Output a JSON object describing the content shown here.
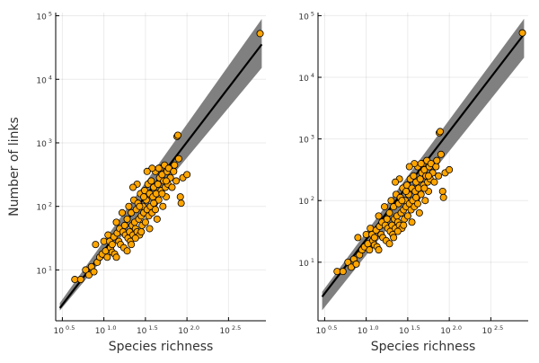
{
  "chart_data": [
    {
      "type": "scatter",
      "title": "",
      "xlabel": "Species richness",
      "ylabel": "Number of links",
      "xscale": "log10",
      "yscale": "log10",
      "xlim_log10": [
        0.42,
        2.95
      ],
      "ylim_log10": [
        0.2,
        5.05
      ],
      "x_ticks_log10": [
        0.5,
        1.0,
        1.5,
        2.0,
        2.5
      ],
      "x_tick_labels": [
        "10 0.5",
        "10 1.0",
        "10 1.5",
        "10 2.0",
        "10 2.5"
      ],
      "y_ticks_log10": [
        1,
        2,
        3,
        4,
        5
      ],
      "y_tick_labels": [
        "10 1",
        "10 2",
        "10 3",
        "10 4",
        "10 5"
      ],
      "grid": true,
      "legend": "none",
      "colors": {
        "points": "#FFA500",
        "point_edge": "#000000",
        "fit_line": "#000000",
        "band": "#808080"
      },
      "fit_line_log10": {
        "x": [
          0.47,
          2.9
        ],
        "y": [
          0.4,
          4.55
        ]
      },
      "band_log10": {
        "x": [
          0.47,
          2.9
        ],
        "upper": [
          0.48,
          4.95
        ],
        "lower": [
          0.36,
          4.18
        ]
      },
      "points_log10": [
        [
          0.65,
          0.85
        ],
        [
          0.72,
          0.85
        ],
        [
          0.78,
          1.0
        ],
        [
          0.82,
          0.92
        ],
        [
          0.85,
          1.05
        ],
        [
          0.88,
          0.97
        ],
        [
          0.9,
          1.4
        ],
        [
          0.92,
          1.12
        ],
        [
          0.95,
          1.2
        ],
        [
          0.98,
          1.25
        ],
        [
          1.0,
          1.45
        ],
        [
          1.02,
          1.3
        ],
        [
          1.04,
          1.2
        ],
        [
          1.05,
          1.55
        ],
        [
          1.07,
          1.45
        ],
        [
          1.08,
          1.35
        ],
        [
          1.1,
          1.28
        ],
        [
          1.12,
          1.52
        ],
        [
          1.13,
          1.25
        ],
        [
          1.15,
          1.75
        ],
        [
          1.16,
          1.58
        ],
        [
          1.18,
          1.45
        ],
        [
          1.19,
          1.65
        ],
        [
          1.2,
          1.4
        ],
        [
          1.22,
          1.9
        ],
        [
          1.23,
          1.6
        ],
        [
          1.24,
          1.35
        ],
        [
          1.25,
          1.7
        ],
        [
          1.26,
          1.55
        ],
        [
          1.28,
          1.8
        ],
        [
          1.29,
          1.5
        ],
        [
          1.3,
          2.0
        ],
        [
          1.31,
          1.6
        ],
        [
          1.32,
          1.45
        ],
        [
          1.33,
          1.9
        ],
        [
          1.34,
          1.7
        ],
        [
          1.35,
          1.55
        ],
        [
          1.36,
          2.1
        ],
        [
          1.37,
          1.75
        ],
        [
          1.38,
          1.65
        ],
        [
          1.39,
          1.95
        ],
        [
          1.4,
          1.6
        ],
        [
          1.41,
          2.05
        ],
        [
          1.42,
          1.8
        ],
        [
          1.43,
          1.55
        ],
        [
          1.44,
          2.2
        ],
        [
          1.45,
          1.85
        ],
        [
          1.46,
          1.7
        ],
        [
          1.47,
          2.0
        ],
        [
          1.48,
          1.9
        ],
        [
          1.49,
          2.25
        ],
        [
          1.5,
          1.75
        ],
        [
          1.51,
          2.1
        ],
        [
          1.52,
          1.95
        ],
        [
          1.53,
          2.35
        ],
        [
          1.54,
          1.85
        ],
        [
          1.55,
          2.2
        ],
        [
          1.56,
          2.0
        ],
        [
          1.57,
          2.4
        ],
        [
          1.58,
          1.9
        ],
        [
          1.59,
          2.15
        ],
        [
          1.6,
          2.3
        ],
        [
          1.61,
          2.05
        ],
        [
          1.62,
          2.55
        ],
        [
          1.63,
          2.2
        ],
        [
          1.64,
          1.8
        ],
        [
          1.65,
          2.35
        ],
        [
          1.66,
          2.1
        ],
        [
          1.67,
          2.45
        ],
        [
          1.68,
          2.6
        ],
        [
          1.69,
          2.25
        ],
        [
          1.7,
          2.5
        ],
        [
          1.71,
          2.0
        ],
        [
          1.72,
          2.4
        ],
        [
          1.73,
          2.65
        ],
        [
          1.74,
          2.3
        ],
        [
          1.75,
          2.15
        ],
        [
          1.76,
          2.55
        ],
        [
          1.77,
          2.35
        ],
        [
          1.78,
          2.6
        ],
        [
          1.8,
          2.45
        ],
        [
          1.82,
          2.3
        ],
        [
          1.84,
          2.55
        ],
        [
          1.85,
          2.65
        ],
        [
          1.87,
          2.4
        ],
        [
          1.88,
          3.1
        ],
        [
          1.89,
          3.12
        ],
        [
          1.9,
          2.75
        ],
        [
          1.92,
          2.15
        ],
        [
          1.93,
          2.05
        ],
        [
          1.95,
          2.45
        ],
        [
          2.0,
          2.5
        ],
        [
          1.28,
          1.3
        ],
        [
          1.33,
          1.4
        ],
        [
          1.38,
          1.5
        ],
        [
          1.45,
          1.6
        ],
        [
          1.15,
          1.2
        ],
        [
          1.1,
          1.4
        ],
        [
          1.48,
          2.15
        ],
        [
          1.55,
          1.65
        ],
        [
          1.62,
          1.95
        ],
        [
          1.7,
          2.2
        ],
        [
          1.66,
          2.6
        ],
        [
          1.58,
          2.6
        ],
        [
          1.52,
          2.55
        ],
        [
          1.4,
          2.35
        ],
        [
          1.35,
          2.3
        ],
        [
          1.43,
          2.0
        ],
        [
          1.6,
          2.05
        ],
        [
          1.75,
          2.4
        ],
        [
          2.88,
          4.72
        ]
      ]
    },
    {
      "type": "scatter",
      "title": "",
      "xlabel": "Species richness",
      "ylabel": "",
      "xscale": "log10",
      "yscale": "log10",
      "xlim_log10": [
        0.42,
        2.95
      ],
      "ylim_log10": [
        0.05,
        5.05
      ],
      "x_ticks_log10": [
        0.5,
        1.0,
        1.5,
        2.0,
        2.5
      ],
      "x_tick_labels": [
        "10 0.5",
        "10 1.0",
        "10 1.5",
        "10 2.0",
        "10 2.5"
      ],
      "y_ticks_log10": [
        1,
        2,
        3,
        4,
        5
      ],
      "y_tick_labels": [
        "10 1",
        "10 2",
        "10 3",
        "10 4",
        "10 5"
      ],
      "grid": true,
      "legend": "none",
      "colors": {
        "points": "#FFA500",
        "point_edge": "#000000",
        "fit_line": "#000000",
        "band": "#808080"
      },
      "fit_line_log10": {
        "x": [
          0.47,
          2.9
        ],
        "y": [
          0.44,
          4.7
        ]
      },
      "band_log10": {
        "x": [
          0.47,
          2.9
        ],
        "upper": [
          0.52,
          4.95
        ],
        "lower": [
          0.22,
          4.32
        ]
      },
      "points_log10": [
        [
          0.65,
          0.85
        ],
        [
          0.72,
          0.85
        ],
        [
          0.78,
          1.0
        ],
        [
          0.82,
          0.92
        ],
        [
          0.85,
          1.05
        ],
        [
          0.88,
          0.97
        ],
        [
          0.9,
          1.4
        ],
        [
          0.92,
          1.12
        ],
        [
          0.95,
          1.2
        ],
        [
          0.98,
          1.25
        ],
        [
          1.0,
          1.45
        ],
        [
          1.02,
          1.3
        ],
        [
          1.04,
          1.2
        ],
        [
          1.05,
          1.55
        ],
        [
          1.07,
          1.45
        ],
        [
          1.08,
          1.35
        ],
        [
          1.1,
          1.28
        ],
        [
          1.12,
          1.52
        ],
        [
          1.13,
          1.25
        ],
        [
          1.15,
          1.75
        ],
        [
          1.16,
          1.58
        ],
        [
          1.18,
          1.45
        ],
        [
          1.19,
          1.65
        ],
        [
          1.2,
          1.4
        ],
        [
          1.22,
          1.9
        ],
        [
          1.23,
          1.6
        ],
        [
          1.24,
          1.35
        ],
        [
          1.25,
          1.7
        ],
        [
          1.26,
          1.55
        ],
        [
          1.28,
          1.8
        ],
        [
          1.29,
          1.5
        ],
        [
          1.3,
          2.0
        ],
        [
          1.31,
          1.6
        ],
        [
          1.32,
          1.45
        ],
        [
          1.33,
          1.9
        ],
        [
          1.34,
          1.7
        ],
        [
          1.35,
          1.55
        ],
        [
          1.36,
          2.1
        ],
        [
          1.37,
          1.75
        ],
        [
          1.38,
          1.65
        ],
        [
          1.39,
          1.95
        ],
        [
          1.4,
          1.6
        ],
        [
          1.41,
          2.05
        ],
        [
          1.42,
          1.8
        ],
        [
          1.43,
          1.55
        ],
        [
          1.44,
          2.2
        ],
        [
          1.45,
          1.85
        ],
        [
          1.46,
          1.7
        ],
        [
          1.47,
          2.0
        ],
        [
          1.48,
          1.9
        ],
        [
          1.49,
          2.25
        ],
        [
          1.5,
          1.75
        ],
        [
          1.51,
          2.1
        ],
        [
          1.52,
          1.95
        ],
        [
          1.53,
          2.35
        ],
        [
          1.54,
          1.85
        ],
        [
          1.55,
          2.2
        ],
        [
          1.56,
          2.0
        ],
        [
          1.57,
          2.4
        ],
        [
          1.58,
          1.9
        ],
        [
          1.59,
          2.15
        ],
        [
          1.6,
          2.3
        ],
        [
          1.61,
          2.05
        ],
        [
          1.62,
          2.55
        ],
        [
          1.63,
          2.2
        ],
        [
          1.64,
          1.8
        ],
        [
          1.65,
          2.35
        ],
        [
          1.66,
          2.1
        ],
        [
          1.67,
          2.45
        ],
        [
          1.68,
          2.6
        ],
        [
          1.69,
          2.25
        ],
        [
          1.7,
          2.5
        ],
        [
          1.71,
          2.0
        ],
        [
          1.72,
          2.4
        ],
        [
          1.73,
          2.65
        ],
        [
          1.74,
          2.3
        ],
        [
          1.75,
          2.15
        ],
        [
          1.76,
          2.55
        ],
        [
          1.77,
          2.35
        ],
        [
          1.78,
          2.6
        ],
        [
          1.8,
          2.45
        ],
        [
          1.82,
          2.3
        ],
        [
          1.84,
          2.55
        ],
        [
          1.85,
          2.65
        ],
        [
          1.87,
          2.4
        ],
        [
          1.88,
          3.1
        ],
        [
          1.89,
          3.12
        ],
        [
          1.9,
          2.75
        ],
        [
          1.92,
          2.15
        ],
        [
          1.93,
          2.05
        ],
        [
          1.95,
          2.45
        ],
        [
          2.0,
          2.5
        ],
        [
          1.28,
          1.3
        ],
        [
          1.33,
          1.4
        ],
        [
          1.38,
          1.5
        ],
        [
          1.45,
          1.6
        ],
        [
          1.15,
          1.2
        ],
        [
          1.1,
          1.4
        ],
        [
          1.48,
          2.15
        ],
        [
          1.55,
          1.65
        ],
        [
          1.62,
          1.95
        ],
        [
          1.7,
          2.2
        ],
        [
          1.66,
          2.6
        ],
        [
          1.58,
          2.6
        ],
        [
          1.52,
          2.55
        ],
        [
          1.4,
          2.35
        ],
        [
          1.35,
          2.3
        ],
        [
          1.43,
          2.0
        ],
        [
          1.6,
          2.05
        ],
        [
          1.75,
          2.4
        ],
        [
          2.88,
          4.72
        ]
      ]
    }
  ]
}
